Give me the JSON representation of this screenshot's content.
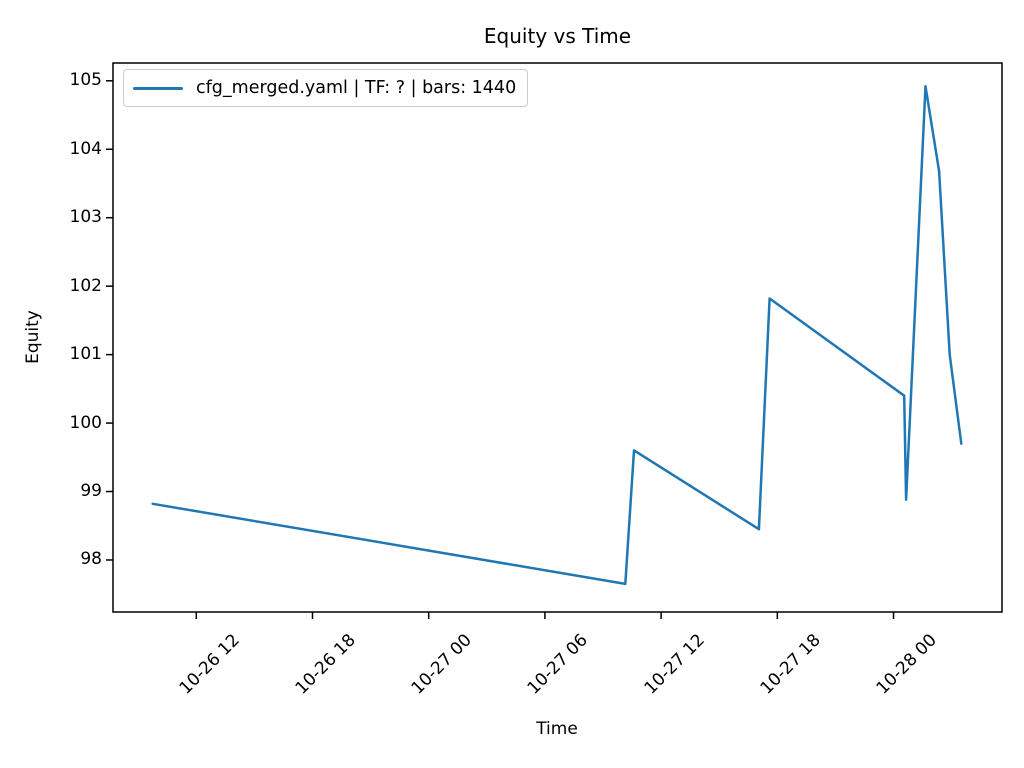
{
  "figure": {
    "title": "Equity vs Time",
    "xlabel": "Time",
    "ylabel": "Equity"
  },
  "colors": {
    "line": "#1f77b4",
    "spine": "#000000",
    "text": "#000000",
    "legend_border": "#cccccc",
    "background": "#ffffff"
  },
  "chart_data": {
    "type": "line",
    "title": "Equity vs Time",
    "xlabel": "Time",
    "ylabel": "Equity",
    "grid": false,
    "legend_position": "upper left",
    "x_unit": "hours since 10-26 00:00",
    "xlim": [
      7.7,
      53.6
    ],
    "ylim": [
      97.24,
      105.26
    ],
    "y_ticks": [
      98,
      99,
      100,
      101,
      102,
      103,
      104,
      105
    ],
    "x_ticks": [
      {
        "pos": 12,
        "label": "10-26 12"
      },
      {
        "pos": 18,
        "label": "10-26 18"
      },
      {
        "pos": 24,
        "label": "10-27 00"
      },
      {
        "pos": 30,
        "label": "10-27 06"
      },
      {
        "pos": 36,
        "label": "10-27 12"
      },
      {
        "pos": 42,
        "label": "10-27 18"
      },
      {
        "pos": 48,
        "label": "10-28 00"
      }
    ],
    "series": [
      {
        "name": "cfg_merged.yaml | TF: ? | bars: 1440",
        "color": "#1f77b4",
        "points": [
          [
            9.75,
            98.82
          ],
          [
            34.15,
            97.65
          ],
          [
            34.6,
            99.6
          ],
          [
            41.05,
            98.45
          ],
          [
            41.6,
            101.82
          ],
          [
            48.55,
            100.4
          ],
          [
            48.65,
            98.88
          ],
          [
            49.65,
            104.92
          ],
          [
            50.35,
            103.68
          ],
          [
            50.9,
            101.0
          ],
          [
            51.5,
            99.7
          ]
        ]
      }
    ]
  }
}
